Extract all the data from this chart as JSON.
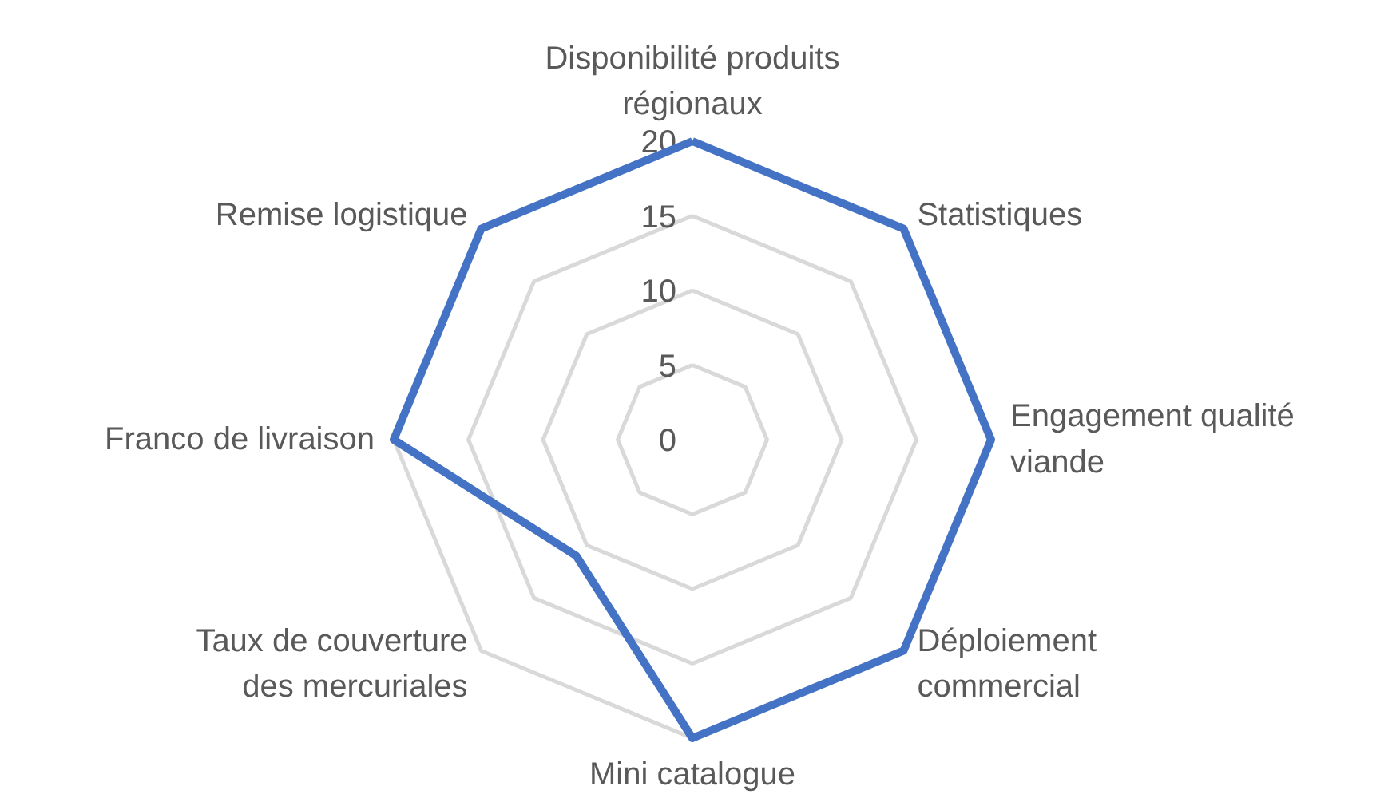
{
  "chart_data": {
    "type": "radar",
    "categories": [
      "Disponibilité produits\nrégionaux",
      "Statistiques",
      "Engagement qualité\nviande",
      "Déploiement\ncommercial",
      "Mini catalogue",
      "Taux de couverture\ndes mercuriales",
      "Franco de livraison",
      "Remise logistique"
    ],
    "series": [
      {
        "color": "#4472c4",
        "values": [
          20,
          20,
          20,
          20,
          20,
          11,
          20,
          20
        ]
      }
    ],
    "ylim": [
      0,
      20
    ],
    "yticks": [
      0,
      5,
      10,
      15,
      20
    ],
    "grid": true
  }
}
